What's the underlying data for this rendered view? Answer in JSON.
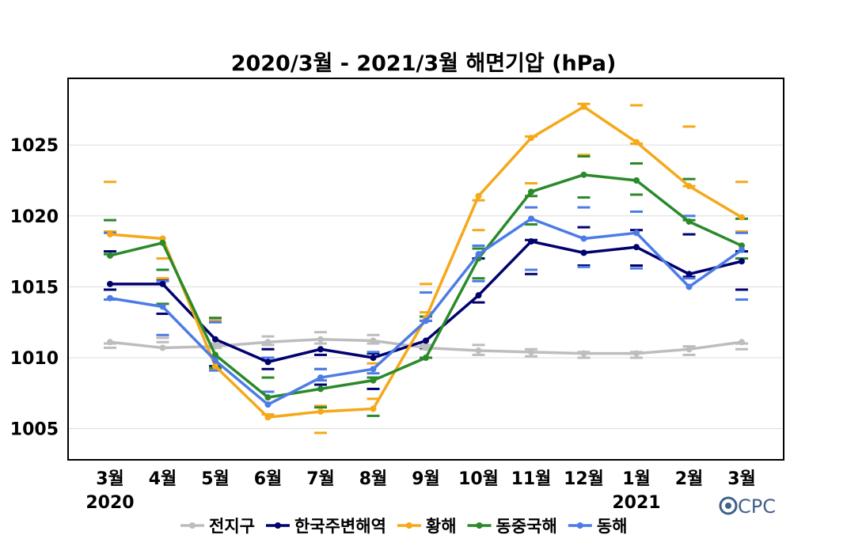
{
  "chart_data": {
    "type": "line",
    "title": "2020/3월 - 2021/3월 해면기압 (hPa)",
    "categories": [
      "3월",
      "4월",
      "5월",
      "6월",
      "7월",
      "8월",
      "9월",
      "10월",
      "11월",
      "12월",
      "1월",
      "2월",
      "3월"
    ],
    "year_labels": [
      {
        "category_index": 0,
        "text": "2020"
      },
      {
        "category_index": 10,
        "text": "2021"
      }
    ],
    "yticks": [
      1005,
      1010,
      1015,
      1020,
      1025
    ],
    "ylim": [
      1002.8,
      1029.7
    ],
    "grid": true,
    "legend_position": "bottom",
    "series": [
      {
        "name": "전지구",
        "color": "#bdbdbd",
        "values": [
          1011.1,
          1010.7,
          1010.8,
          1011.1,
          1011.3,
          1011.2,
          1010.7,
          1010.5,
          1010.4,
          1010.3,
          1010.3,
          1010.6,
          1011.1
        ],
        "ranges": [
          [
            1010.7,
            1011.0
          ],
          [
            1011.1,
            1011.4
          ],
          [
            1010.7,
            1011.0
          ],
          [
            1010.9,
            1011.5
          ],
          [
            1011.0,
            1011.8
          ],
          [
            1011.0,
            1011.6
          ],
          [
            1010.6,
            1010.9
          ],
          [
            1010.2,
            1010.9
          ],
          [
            1010.1,
            1010.6
          ],
          [
            1010.0,
            1010.4
          ],
          [
            1010.0,
            1010.4
          ],
          [
            1010.2,
            1010.8
          ],
          [
            1010.6,
            1011.0
          ]
        ]
      },
      {
        "name": "한국주변해역",
        "color": "#00006e",
        "values": [
          1015.2,
          1015.2,
          1011.3,
          1009.7,
          1010.6,
          1010.0,
          1011.2,
          1014.4,
          1018.2,
          1017.4,
          1017.8,
          1015.9,
          1016.8
        ],
        "ranges": [
          [
            1014.8,
            1017.5
          ],
          [
            1013.1,
            1015.5
          ],
          [
            1009.4,
            1012.8
          ],
          [
            1009.2,
            1010.6
          ],
          [
            1008.1,
            1010.2
          ],
          [
            1007.8,
            1010.3
          ],
          [
            1010.7,
            1012.6
          ],
          [
            1013.9,
            1017.0
          ],
          [
            1015.9,
            1018.3
          ],
          [
            1016.5,
            1019.2
          ],
          [
            1016.5,
            1019.0
          ],
          [
            1015.7,
            1018.7
          ],
          [
            1014.8,
            1017.5
          ]
        ]
      },
      {
        "name": "황해",
        "color": "#f5a818",
        "values": [
          1018.7,
          1018.4,
          1009.4,
          1005.8,
          1006.2,
          1006.4,
          1012.8,
          1021.4,
          1025.5,
          1027.7,
          1025.2,
          1022.1,
          1019.9
        ],
        "ranges": [
          [
            1018.9,
            1022.4
          ],
          [
            1015.6,
            1017.0
          ],
          [
            1009.2,
            1012.6
          ],
          [
            1006.0,
            1009.8
          ],
          [
            1004.7,
            1006.6
          ],
          [
            1007.1,
            1009.6
          ],
          [
            1013.2,
            1015.2
          ],
          [
            1019.0,
            1021.1
          ],
          [
            1022.3,
            1025.6
          ],
          [
            1024.3,
            1027.9
          ],
          [
            1025.1,
            1027.8
          ],
          [
            1022.1,
            1026.3
          ],
          [
            1018.9,
            1022.4
          ]
        ]
      },
      {
        "name": "동중국해",
        "color": "#2a8a2a",
        "values": [
          1017.2,
          1018.1,
          1010.2,
          1007.2,
          1007.8,
          1008.4,
          1010.0,
          1017.0,
          1021.7,
          1022.9,
          1022.5,
          1019.6,
          1017.9
        ],
        "ranges": [
          [
            1017.3,
            1019.7
          ],
          [
            1013.8,
            1016.2
          ],
          [
            1009.3,
            1012.8
          ],
          [
            1008.6,
            1009.8
          ],
          [
            1006.5,
            1009.2
          ],
          [
            1005.9,
            1008.6
          ],
          [
            1010.0,
            1012.9
          ],
          [
            1015.6,
            1017.7
          ],
          [
            1019.4,
            1021.4
          ],
          [
            1021.3,
            1024.2
          ],
          [
            1021.5,
            1023.7
          ],
          [
            1019.7,
            1022.6
          ],
          [
            1017.0,
            1019.8
          ]
        ]
      },
      {
        "name": "동해",
        "color": "#4d7be6",
        "values": [
          1014.2,
          1013.6,
          1009.8,
          1006.7,
          1008.6,
          1009.2,
          1012.6,
          1017.3,
          1019.8,
          1018.4,
          1018.8,
          1015.0,
          1017.6
        ],
        "ranges": [
          [
            1014.1,
            1018.8
          ],
          [
            1011.6,
            1015.4
          ],
          [
            1009.1,
            1012.5
          ],
          [
            1007.6,
            1010.0
          ],
          [
            1008.4,
            1009.2
          ],
          [
            1008.9,
            1010.4
          ],
          [
            1012.6,
            1014.6
          ],
          [
            1015.4,
            1017.9
          ],
          [
            1016.2,
            1020.6
          ],
          [
            1016.4,
            1020.6
          ],
          [
            1016.3,
            1020.3
          ],
          [
            1015.6,
            1020.0
          ],
          [
            1014.1,
            1018.8
          ]
        ]
      }
    ]
  },
  "credit": {
    "text": "CPC",
    "icon": "noaa-logo-icon"
  }
}
